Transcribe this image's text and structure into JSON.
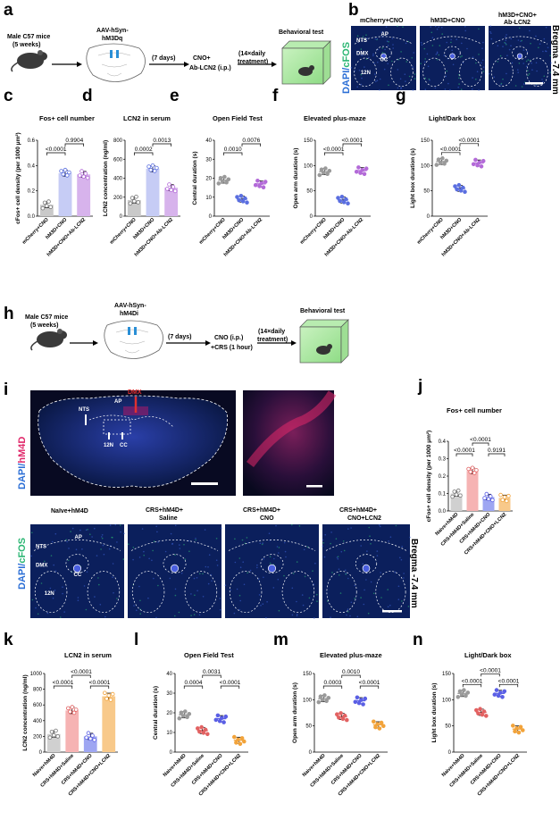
{
  "panel_letters": {
    "a": "a",
    "b": "b",
    "c": "c",
    "d": "d",
    "e": "e",
    "f": "f",
    "g": "g",
    "h": "h",
    "i": "i",
    "j": "j",
    "k": "k",
    "l": "l",
    "m": "m",
    "n": "n"
  },
  "panel_a": {
    "mouse_label_1": "Male C57 mice",
    "mouse_label_2": "(5 weeks)",
    "virus_1": "AAV-hSyn-",
    "virus_2": "hM3Dq",
    "wait": "(7 days)",
    "treat_1": "CNO+",
    "treat_2": "Ab-LCN2 (i.p.)",
    "daily_1": "(14×daily",
    "daily_2": "treatment)",
    "test": "Behavioral test"
  },
  "panel_b": {
    "groups": [
      "mCherry+CNO",
      "hM3D+CNO",
      "hM3D+CNO+",
      "Ab-LCN2"
    ],
    "stain_1": "DAPI/",
    "stain_2": "cFOS",
    "bregma": "Bregma -7.4 mm",
    "regions": [
      "NTS",
      "AP",
      "DMX",
      "CC",
      "12N"
    ]
  },
  "panel_h": {
    "mouse_label_1": "Male C57 mice",
    "mouse_label_2": "(5 weeks)",
    "virus_1": "AAV-hSyn-",
    "virus_2": "hM4Di",
    "wait": "(7 days)",
    "treat_1": "CNO (i.p.)",
    "treat_2": "+CRS (1 hour)",
    "daily_1": "(14×daily",
    "daily_2": "treatment)",
    "test": "Behavioral test"
  },
  "panel_i": {
    "stain_1": "DAPI/",
    "stain_2": "hM4D",
    "labels": [
      "NTS",
      "AP",
      "DMX",
      "12N",
      "CC"
    ],
    "groups": [
      "Naïve+hM4D",
      "CRS+hM4D+",
      "Saline",
      "CRS+hM4D+",
      "CNO",
      "CRS+hM4D+",
      "CNO+LCN2"
    ],
    "stain2_1": "DAPI/",
    "stain2_2": "cFOS",
    "bregma": "Bregma -7.4 mm",
    "regions": [
      "NTS",
      "AP",
      "DMX",
      "CC",
      "12N"
    ]
  },
  "colors": {
    "grey": "#9a9a9a",
    "blue": "#5b6fe0",
    "lightblue": "#c8cdf7",
    "purple": "#b36ad8",
    "red": "#e26262",
    "orange": "#f2a33a",
    "darkblue": "#5a5fe5",
    "mcherry": "#e0286a",
    "cfos": "#2bb673",
    "brain_bg": "#0a1a4a"
  },
  "chart_data": [
    {
      "id": "c",
      "type": "bar",
      "title": "Fos+ cell number",
      "ylabel": "cFos+ cell density (per 1000 μm²)",
      "ylim": [
        0,
        0.6
      ],
      "yticks": [
        "0.0",
        "0.2",
        "0.4",
        "0.6"
      ],
      "categories": [
        "mCherry+CNO",
        "hM3D+CNO",
        "hM3D+CNO+Ab-LCN2"
      ],
      "values": [
        0.09,
        0.34,
        0.33
      ],
      "colors": [
        "#c9c9c9",
        "#c6ccf5",
        "#d7b3ec"
      ],
      "dotcolors": [
        "#777",
        "#5b6fe0",
        "#b36ad8"
      ],
      "pvalues": [
        {
          "text": "<0.0001",
          "from": 0,
          "to": 1
        },
        {
          "text": "0.9904",
          "from": 1,
          "to": 2
        }
      ]
    },
    {
      "id": "d",
      "type": "bar",
      "title": "LCN2 in serum",
      "ylabel": "LCN2 concentration (ng/ml)",
      "ylim": [
        0,
        800
      ],
      "yticks": [
        "0",
        "200",
        "400",
        "600",
        "800"
      ],
      "categories": [
        "mCherry+CNO",
        "hM3D+CNO",
        "hM3D+CNO+Ab-LCN2"
      ],
      "values": [
        170,
        500,
        300
      ],
      "colors": [
        "#c9c9c9",
        "#c6ccf5",
        "#d7b3ec"
      ],
      "dotcolors": [
        "#777",
        "#5b6fe0",
        "#b36ad8"
      ],
      "pvalues": [
        {
          "text": "0.0002",
          "from": 0,
          "to": 1
        },
        {
          "text": "0.0013",
          "from": 1,
          "to": 2
        }
      ]
    },
    {
      "id": "e",
      "type": "scatter",
      "title": "Open Field Test",
      "ylabel": "Central duration (s)",
      "ylim": [
        0,
        40
      ],
      "yticks": [
        "0",
        "10",
        "20",
        "30",
        "40"
      ],
      "categories": [
        "mCherry+CNO",
        "hM3D+CNO",
        "hM3D+CNO+Ab-LCN2"
      ],
      "values": [
        19,
        9,
        17
      ],
      "dotcolors": [
        "#9a9a9a",
        "#5b6fe0",
        "#b36ad8"
      ],
      "pvalues": [
        {
          "text": "0.0010",
          "from": 0,
          "to": 1
        },
        {
          "text": "0.0076",
          "from": 1,
          "to": 2
        }
      ]
    },
    {
      "id": "f",
      "type": "scatter",
      "title": "Elevated plus-maze",
      "ylabel": "Open arm duration (s)",
      "ylim": [
        0,
        150
      ],
      "yticks": [
        "0",
        "50",
        "100",
        "150"
      ],
      "categories": [
        "mCherry+CNO",
        "hM3D+CNO",
        "hM3D+CNO+Ab-LCN2"
      ],
      "values": [
        88,
        32,
        90
      ],
      "dotcolors": [
        "#9a9a9a",
        "#5b6fe0",
        "#b36ad8"
      ],
      "pvalues": [
        {
          "text": "<0.0001",
          "from": 0,
          "to": 1
        },
        {
          "text": "<0.0001",
          "from": 1,
          "to": 2
        }
      ]
    },
    {
      "id": "g",
      "type": "scatter",
      "title": "Light/Dark box",
      "ylabel": "Light box duration (s)",
      "ylim": [
        0,
        150
      ],
      "yticks": [
        "0",
        "50",
        "100",
        "150"
      ],
      "categories": [
        "mCherry+CNO",
        "hM3D+CNO",
        "hM3D+CNO+Ab-LCN2"
      ],
      "values": [
        108,
        55,
        105
      ],
      "dotcolors": [
        "#9a9a9a",
        "#5b6fe0",
        "#b36ad8"
      ],
      "pvalues": [
        {
          "text": "<0.0001",
          "from": 0,
          "to": 1
        },
        {
          "text": "<0.0001",
          "from": 1,
          "to": 2
        }
      ]
    },
    {
      "id": "j",
      "type": "bar",
      "title": "Fos+ cell number",
      "ylabel": "cFos+ cell density (per 1000 μm²)",
      "ylim": [
        0,
        0.4
      ],
      "yticks": [
        "0.0",
        "0.1",
        "0.2",
        "0.3",
        "0.4"
      ],
      "categories": [
        "Naive+hM4D",
        "CRS+hM4D+Saline",
        "CRS+hM4D+CNO",
        "CRS+hM4D+CNO+LCN2"
      ],
      "values": [
        0.1,
        0.23,
        0.08,
        0.075
      ],
      "colors": [
        "#d0d0d0",
        "#f6b3b3",
        "#9ea6f2",
        "#f8c98a"
      ],
      "dotcolors": [
        "#777",
        "#e26262",
        "#5a5fe5",
        "#f2a33a"
      ],
      "pvalues": [
        {
          "text": "<0.0001",
          "from": 0,
          "to": 1
        },
        {
          "text": "<0.0001",
          "from": 1,
          "to": 2
        },
        {
          "text": "0.9191",
          "from": 2,
          "to": 3
        }
      ]
    },
    {
      "id": "k",
      "type": "bar",
      "title": "LCN2 in serum",
      "ylabel": "LCN2 concentration (ng/ml)",
      "ylim": [
        0,
        1000
      ],
      "yticks": [
        "0",
        "200",
        "400",
        "600",
        "800",
        "1000"
      ],
      "categories": [
        "Naive+hM4D",
        "CRS+hM4D+Saline",
        "CRS+hM4D+CNO",
        "CRS+hM4D+CNO+LCN2"
      ],
      "values": [
        230,
        530,
        200,
        710
      ],
      "colors": [
        "#d0d0d0",
        "#f6b3b3",
        "#9ea6f2",
        "#f8c98a"
      ],
      "dotcolors": [
        "#777",
        "#e26262",
        "#5a5fe5",
        "#f2a33a"
      ],
      "pvalues": [
        {
          "text": "<0.0001",
          "from": 0,
          "to": 1
        },
        {
          "text": "<0.0001",
          "from": 1,
          "to": 2
        },
        {
          "text": "<0.0001",
          "from": 2,
          "to": 3
        }
      ]
    },
    {
      "id": "l",
      "type": "scatter",
      "title": "Open Field Test",
      "ylabel": "Central duration (s)",
      "ylim": [
        0,
        40
      ],
      "yticks": [
        "0",
        "10",
        "20",
        "30",
        "40"
      ],
      "categories": [
        "Naive+hM4D",
        "CRS+hM4D+Saline",
        "CRS+hM4D+CNO",
        "CRS+hM4D+CNO+LCN2"
      ],
      "values": [
        19,
        11,
        17,
        6
      ],
      "dotcolors": [
        "#9a9a9a",
        "#e26262",
        "#5a5fe5",
        "#f2a33a"
      ],
      "pvalues": [
        {
          "text": "0.0004",
          "from": 0,
          "to": 1
        },
        {
          "text": "0.0031",
          "from": 1,
          "to": 2
        },
        {
          "text": "<0.0001",
          "from": 2,
          "to": 3
        }
      ]
    },
    {
      "id": "m",
      "type": "scatter",
      "title": "Elevated plus-maze",
      "ylabel": "Open arm duration (s)",
      "ylim": [
        0,
        150
      ],
      "yticks": [
        "0",
        "50",
        "100",
        "150"
      ],
      "categories": [
        "Naive+hM4D",
        "CRS+hM4D+Saline",
        "CRS+hM4D+CNO",
        "CRS+hM4D+CNO+LCN2"
      ],
      "values": [
        102,
        68,
        98,
        52
      ],
      "dotcolors": [
        "#9a9a9a",
        "#e26262",
        "#5a5fe5",
        "#f2a33a"
      ],
      "pvalues": [
        {
          "text": "0.0003",
          "from": 0,
          "to": 1
        },
        {
          "text": "0.0010",
          "from": 1,
          "to": 2
        },
        {
          "text": "<0.0001",
          "from": 2,
          "to": 3
        }
      ]
    },
    {
      "id": "n",
      "type": "scatter",
      "title": "Light/Dark box",
      "ylabel": "Light box duration (s)",
      "ylim": [
        0,
        150
      ],
      "yticks": [
        "0",
        "50",
        "100",
        "150"
      ],
      "categories": [
        "Naive+hM4D",
        "CRS+hM4D+Saline",
        "CRS+hM4D+CNO",
        "CRS+hM4D+CNO+LCN2"
      ],
      "values": [
        112,
        76,
        112,
        44
      ],
      "dotcolors": [
        "#9a9a9a",
        "#e26262",
        "#5a5fe5",
        "#f2a33a"
      ],
      "pvalues": [
        {
          "text": "<0.0001",
          "from": 0,
          "to": 1
        },
        {
          "text": "<0.0001",
          "from": 1,
          "to": 2
        },
        {
          "text": "<0.0001",
          "from": 2,
          "to": 3
        }
      ]
    }
  ]
}
